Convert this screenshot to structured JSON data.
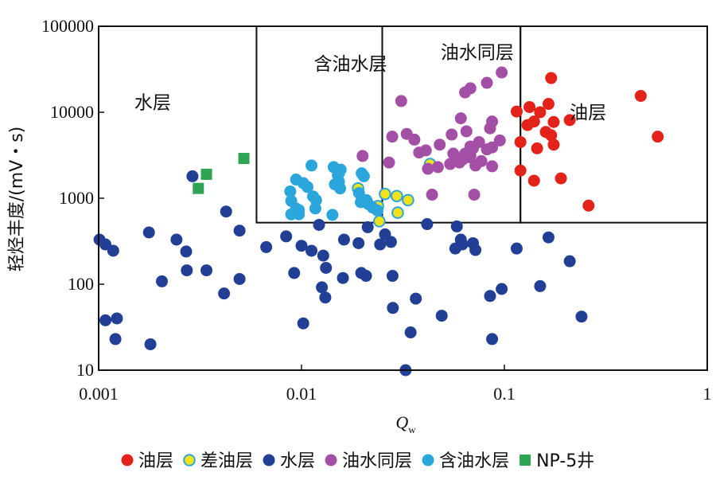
{
  "chart_data": {
    "type": "scatter",
    "x_scale": "log",
    "y_scale": "log",
    "xlim": [
      0.001,
      1
    ],
    "ylim": [
      10,
      100000
    ],
    "xlabel": "Q",
    "xlabel_subscript": "w",
    "ylabel": "轻烃丰度/(mV・s)",
    "x_ticks": [
      "0.001",
      "0.01",
      "0.1",
      "1"
    ],
    "y_ticks": [
      "10",
      "100",
      "1000",
      "10000",
      "100000"
    ],
    "regions": [
      {
        "label": "水层",
        "label_at": [
          0.0015,
          11000
        ]
      },
      {
        "label": "含油水层",
        "label_at": [
          0.0115,
          31000
        ]
      },
      {
        "label": "油水同层",
        "label_at": [
          0.0485,
          42000
        ]
      },
      {
        "label": "油层",
        "label_at": [
          0.21,
          8400
        ]
      }
    ],
    "region_boxes": [
      {
        "x": [
          0.006,
          0.025
        ],
        "y": [
          520,
          100000
        ]
      },
      {
        "x": [
          0.025,
          0.12
        ],
        "y": [
          520,
          100000
        ]
      },
      {
        "x": [
          0.12,
          1
        ],
        "y": [
          520,
          100000
        ]
      }
    ],
    "legend_position": "bottom",
    "series": [
      {
        "name": "油层",
        "color": "#e32219",
        "marker": "circle",
        "points": [
          [
            0.17,
            25000
          ],
          [
            0.47,
            15500
          ],
          [
            0.133,
            11500
          ],
          [
            0.115,
            10200
          ],
          [
            0.165,
            12500
          ],
          [
            0.15,
            10000
          ],
          [
            0.21,
            8100
          ],
          [
            0.14,
            7800
          ],
          [
            0.13,
            7100
          ],
          [
            0.175,
            7700
          ],
          [
            0.16,
            5900
          ],
          [
            0.17,
            5400
          ],
          [
            0.12,
            4500
          ],
          [
            0.145,
            3800
          ],
          [
            0.175,
            4200
          ],
          [
            0.57,
            5200
          ],
          [
            0.12,
            2100
          ],
          [
            0.14,
            1600
          ],
          [
            0.19,
            1700
          ],
          [
            0.26,
            820
          ]
        ]
      },
      {
        "name": "差油层",
        "color": "#f2e21c",
        "stroke": "#2aa6dc",
        "marker": "circle",
        "points": [
          [
            0.043,
            2500
          ],
          [
            0.019,
            1300
          ],
          [
            0.0258,
            1120
          ],
          [
            0.0295,
            1060
          ],
          [
            0.0335,
            950
          ],
          [
            0.0238,
            810
          ],
          [
            0.0298,
            680
          ],
          [
            0.0242,
            540
          ]
        ]
      },
      {
        "name": "水层",
        "color": "#223f96",
        "marker": "circle",
        "points": [
          [
            0.00101,
            330
          ],
          [
            0.00108,
            290
          ],
          [
            0.00118,
            245
          ],
          [
            0.00108,
            38
          ],
          [
            0.00123,
            40
          ],
          [
            0.00121,
            23
          ],
          [
            0.00177,
            400
          ],
          [
            0.0018,
            20
          ],
          [
            0.00205,
            108
          ],
          [
            0.00242,
            330
          ],
          [
            0.0027,
            240
          ],
          [
            0.00272,
            145
          ],
          [
            0.0029,
            1800
          ],
          [
            0.0034,
            145
          ],
          [
            0.00425,
            700
          ],
          [
            0.00415,
            78
          ],
          [
            0.00495,
            420
          ],
          [
            0.00495,
            115
          ],
          [
            0.0067,
            270
          ],
          [
            0.0084,
            360
          ],
          [
            0.0092,
            135
          ],
          [
            0.01,
            280
          ],
          [
            0.0102,
            35
          ],
          [
            0.0112,
            245
          ],
          [
            0.0122,
            490
          ],
          [
            0.0128,
            215
          ],
          [
            0.0126,
            92
          ],
          [
            0.0132,
            155
          ],
          [
            0.0131,
            70
          ],
          [
            0.0162,
            330
          ],
          [
            0.016,
            118
          ],
          [
            0.0191,
            300
          ],
          [
            0.0197,
            135
          ],
          [
            0.0208,
            125
          ],
          [
            0.0212,
            460
          ],
          [
            0.0244,
            290
          ],
          [
            0.0258,
            380
          ],
          [
            0.0276,
            310
          ],
          [
            0.0281,
            125
          ],
          [
            0.0282,
            53
          ],
          [
            0.0326,
            10
          ],
          [
            0.0345,
            27.5
          ],
          [
            0.0366,
            68
          ],
          [
            0.0416,
            500
          ],
          [
            0.0491,
            43
          ],
          [
            0.0583,
            470
          ],
          [
            0.061,
            330
          ],
          [
            0.062,
            290
          ],
          [
            0.0573,
            260
          ],
          [
            0.07,
            300
          ],
          [
            0.072,
            250
          ],
          [
            0.085,
            73
          ],
          [
            0.087,
            23
          ],
          [
            0.097,
            88
          ],
          [
            0.115,
            260
          ],
          [
            0.15,
            95
          ],
          [
            0.165,
            350
          ],
          [
            0.21,
            185
          ],
          [
            0.24,
            42
          ]
        ]
      },
      {
        "name": "油水同层",
        "color": "#a34fa5",
        "marker": "circle",
        "points": [
          [
            0.097,
            29000
          ],
          [
            0.082,
            22000
          ],
          [
            0.068,
            19000
          ],
          [
            0.064,
            17000
          ],
          [
            0.031,
            13500
          ],
          [
            0.061,
            8500
          ],
          [
            0.087,
            7800
          ],
          [
            0.085,
            6500
          ],
          [
            0.065,
            6000
          ],
          [
            0.055,
            5500
          ],
          [
            0.033,
            5600
          ],
          [
            0.028,
            5200
          ],
          [
            0.036,
            4800
          ],
          [
            0.095,
            4700
          ],
          [
            0.075,
            4500
          ],
          [
            0.048,
            4200
          ],
          [
            0.068,
            4000
          ],
          [
            0.07,
            3800
          ],
          [
            0.082,
            3700
          ],
          [
            0.087,
            3900
          ],
          [
            0.02,
            3100
          ],
          [
            0.038,
            3400
          ],
          [
            0.041,
            3600
          ],
          [
            0.056,
            3300
          ],
          [
            0.064,
            3300
          ],
          [
            0.068,
            3100
          ],
          [
            0.067,
            3000
          ],
          [
            0.062,
            2800
          ],
          [
            0.077,
            2700
          ],
          [
            0.06,
            2600
          ],
          [
            0.054,
            2500
          ],
          [
            0.072,
            2400
          ],
          [
            0.087,
            2350
          ],
          [
            0.047,
            2300
          ],
          [
            0.027,
            2600
          ],
          [
            0.042,
            2200
          ],
          [
            0.044,
            1100
          ],
          [
            0.071,
            1100
          ]
        ]
      },
      {
        "name": "含油水层",
        "color": "#2aa6dc",
        "marker": "circle",
        "points": [
          [
            0.0112,
            2400
          ],
          [
            0.0144,
            2300
          ],
          [
            0.0156,
            2150
          ],
          [
            0.0153,
            1950
          ],
          [
            0.0151,
            1850
          ],
          [
            0.0198,
            1950
          ],
          [
            0.0203,
            1800
          ],
          [
            0.0094,
            1650
          ],
          [
            0.0102,
            1500
          ],
          [
            0.0146,
            1450
          ],
          [
            0.0153,
            1550
          ],
          [
            0.0107,
            1350
          ],
          [
            0.0155,
            1300
          ],
          [
            0.0088,
            1200
          ],
          [
            0.0192,
            1150
          ],
          [
            0.0114,
            1050
          ],
          [
            0.0118,
            950
          ],
          [
            0.0209,
            950
          ],
          [
            0.0196,
            900
          ],
          [
            0.0089,
            930
          ],
          [
            0.0214,
            850
          ],
          [
            0.0224,
            780
          ],
          [
            0.0094,
            760
          ],
          [
            0.0097,
            730
          ],
          [
            0.0117,
            760
          ],
          [
            0.0237,
            720
          ],
          [
            0.0089,
            650
          ],
          [
            0.0097,
            650
          ],
          [
            0.0142,
            640
          ]
        ]
      },
      {
        "name": "NP-5井",
        "color": "#2ea454",
        "marker": "square",
        "points": [
          [
            0.0052,
            2900
          ],
          [
            0.0034,
            1900
          ],
          [
            0.0031,
            1300
          ]
        ]
      }
    ]
  }
}
